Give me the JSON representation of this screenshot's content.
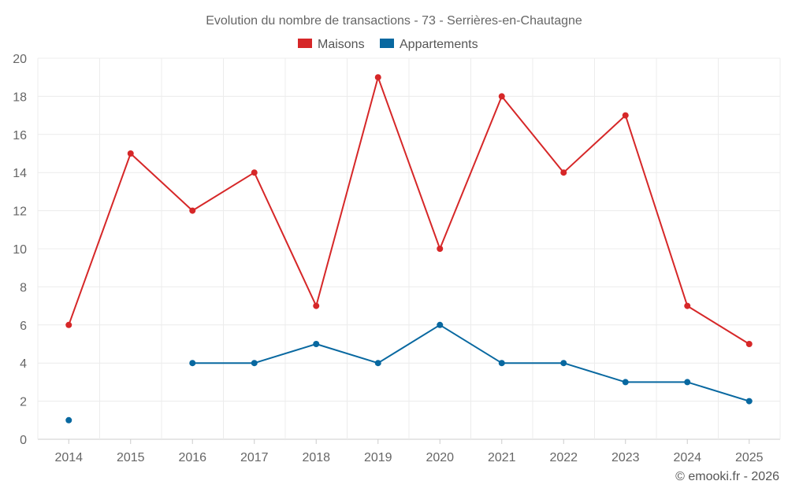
{
  "chart_data": {
    "type": "line",
    "title": "Evolution du nombre de transactions - 73 - Serrières-en-Chautagne",
    "xlabel": "",
    "ylabel": "",
    "ylim": [
      0,
      20
    ],
    "y_ticks": [
      0,
      2,
      4,
      6,
      8,
      10,
      12,
      14,
      16,
      18,
      20
    ],
    "categories": [
      "2014",
      "2015",
      "2016",
      "2017",
      "2018",
      "2019",
      "2020",
      "2021",
      "2022",
      "2023",
      "2024",
      "2025"
    ],
    "series": [
      {
        "name": "Maisons",
        "color": "#d62728",
        "values": [
          6,
          15,
          12,
          14,
          7,
          19,
          10,
          18,
          14,
          17,
          7,
          5
        ]
      },
      {
        "name": "Appartements",
        "color": "#0868a0",
        "values": [
          1,
          null,
          4,
          4,
          5,
          4,
          6,
          4,
          4,
          3,
          3,
          2
        ]
      }
    ],
    "grid": true,
    "legend_position": "top-center"
  },
  "credit": "© emooki.fr - 2026"
}
